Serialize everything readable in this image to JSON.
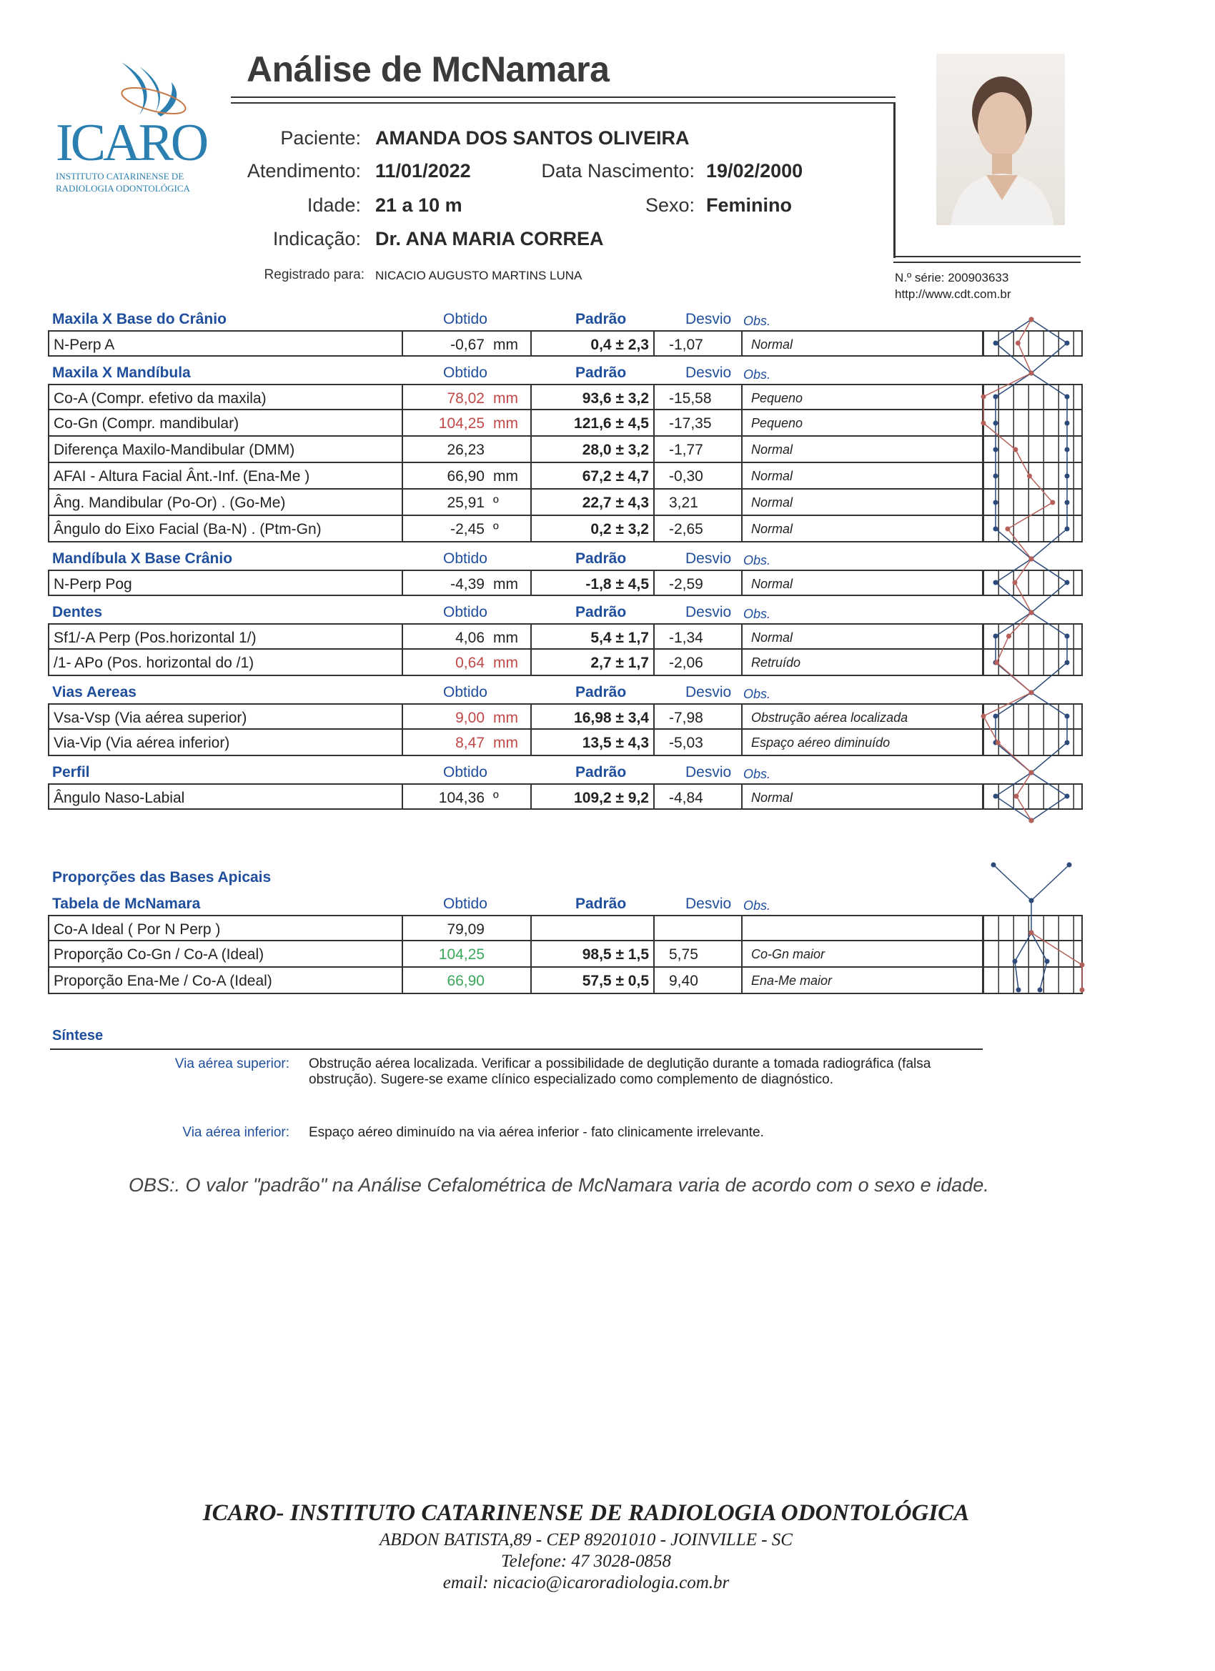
{
  "header": {
    "title": "Análise de McNamara",
    "logo": {
      "name": "ICARO",
      "line1": "INSTITUTO CATARINENSE DE",
      "line2": "RADIOLOGIA ODONTOLÓGICA"
    },
    "paciente_label": "Paciente:",
    "paciente": "AMANDA DOS SANTOS OLIVEIRA",
    "atendimento_label": "Atendimento:",
    "atendimento": "11/01/2022",
    "nascimento_label": "Data Nascimento:",
    "nascimento": "19/02/2000",
    "idade_label": "Idade:",
    "idade": "21 a 10 m",
    "sexo_label": "Sexo:",
    "sexo": "Feminino",
    "indicacao_label": "Indicação:",
    "indicacao": "Dr. ANA MARIA CORREA",
    "registrado_label": "Registrado para:",
    "registrado": "NICACIO AUGUSTO MARTINS LUNA",
    "serie": "N.º série: 200903633",
    "url": "http://www.cdt.com.br"
  },
  "columns": {
    "obtido": "Obtido",
    "padrao": "Padrão",
    "desvio": "Desvio",
    "obs": "Obs."
  },
  "colors": {
    "heading": "#1f4e9c",
    "out_of_range": "#c24848",
    "proportion": "#3aa85a",
    "graph_norm": "#2c4a7a",
    "graph_patient": "#b5605a"
  },
  "sections": [
    {
      "title": "Maxila X Base do Crânio",
      "rows": [
        {
          "name": "N-Perp A",
          "obtido": "-0,67",
          "unit": "mm",
          "padrao": "0,4 ± 2,3",
          "desvio": "-1,07",
          "obs": "Normal",
          "flag": ""
        }
      ]
    },
    {
      "title": "Maxila X Mandíbula",
      "rows": [
        {
          "name": "Co-A (Compr. efetivo da maxila)",
          "obtido": "78,02",
          "unit": "mm",
          "padrao": "93,6 ± 3,2",
          "desvio": "-15,58",
          "obs": "Pequeno",
          "flag": "red"
        },
        {
          "name": "Co-Gn (Compr. mandibular)",
          "obtido": "104,25",
          "unit": "mm",
          "padrao": "121,6 ± 4,5",
          "desvio": "-17,35",
          "obs": "Pequeno",
          "flag": "red"
        },
        {
          "name": "Diferença Maxilo-Mandibular (DMM)",
          "obtido": "26,23",
          "unit": "",
          "padrao": "28,0 ± 3,2",
          "desvio": "-1,77",
          "obs": "Normal",
          "flag": ""
        },
        {
          "name": "AFAI - Altura Facial Ânt.-Inf. (Ena-Me )",
          "obtido": "66,90",
          "unit": "mm",
          "padrao": "67,2 ± 4,7",
          "desvio": "-0,30",
          "obs": "Normal",
          "flag": ""
        },
        {
          "name": "Âng. Mandibular (Po-Or) . (Go-Me)",
          "obtido": "25,91",
          "unit": "º",
          "padrao": "22,7 ± 4,3",
          "desvio": "3,21",
          "obs": "Normal",
          "flag": ""
        },
        {
          "name": "Ângulo do Eixo Facial  (Ba-N) . (Ptm-Gn)",
          "obtido": "-2,45",
          "unit": "º",
          "padrao": "0,2 ± 3,2",
          "desvio": "-2,65",
          "obs": "Normal",
          "flag": ""
        }
      ]
    },
    {
      "title": "Mandíbula X Base Crânio",
      "rows": [
        {
          "name": "N-Perp Pog",
          "obtido": "-4,39",
          "unit": "mm",
          "padrao": "-1,8 ± 4,5",
          "desvio": "-2,59",
          "obs": "Normal",
          "flag": ""
        }
      ]
    },
    {
      "title": "Dentes",
      "rows": [
        {
          "name": "Sf1/-A Perp (Pos.horizontal 1/)",
          "obtido": "4,06",
          "unit": "mm",
          "padrao": "5,4 ± 1,7",
          "desvio": "-1,34",
          "obs": "Normal",
          "flag": ""
        },
        {
          "name": "/1- APo  (Pos. horizontal do /1)",
          "obtido": "0,64",
          "unit": "mm",
          "padrao": "2,7 ± 1,7",
          "desvio": "-2,06",
          "obs": "Retruído",
          "flag": "red"
        }
      ]
    },
    {
      "title": "Vias Aereas",
      "rows": [
        {
          "name": "Vsa-Vsp (Via aérea superior)",
          "obtido": "9,00",
          "unit": "mm",
          "padrao": "16,98 ± 3,4",
          "desvio": "-7,98",
          "obs": "Obstrução aérea localizada",
          "flag": "red"
        },
        {
          "name": "Via-Vip (Via aérea inferior)",
          "obtido": "8,47",
          "unit": "mm",
          "padrao": "13,5 ± 4,3",
          "desvio": "-5,03",
          "obs": "Espaço aéreo diminuído",
          "flag": "red"
        }
      ]
    },
    {
      "title": "Perfil",
      "rows": [
        {
          "name": "Ângulo Naso-Labial",
          "obtido": "104,36",
          "unit": "º",
          "padrao": "109,2 ± 9,2",
          "desvio": "-4,84",
          "obs": "Normal",
          "flag": ""
        }
      ]
    }
  ],
  "proporcoes": {
    "title": "Proporções das Bases Apicais",
    "section": {
      "title": "Tabela de McNamara",
      "rows": [
        {
          "name": "Co-A  Ideal  ( Por N Perp )",
          "obtido": "79,09",
          "unit": "",
          "padrao": "",
          "desvio": "",
          "obs": "",
          "flag": ""
        },
        {
          "name": "Proporção Co-Gn / Co-A (Ideal)",
          "obtido": "104,25",
          "unit": "",
          "padrao": "98,5 ± 1,5",
          "desvio": "5,75",
          "obs": "Co-Gn maior",
          "flag": "green"
        },
        {
          "name": "Proporção Ena-Me / Co-A (Ideal)",
          "obtido": "66,90",
          "unit": "",
          "padrao": "57,5 ± 0,5",
          "desvio": "9,40",
          "obs": "Ena-Me maior",
          "flag": "green"
        }
      ]
    }
  },
  "sintese": {
    "title": "Síntese",
    "superior_label": "Via aérea superior:",
    "superior_text": "Obstrução aérea localizada. Verificar a possibilidade de deglutição durante a tomada radiográfica (falsa obstrução). Sugere-se exame clínico especializado como complemento de diagnóstico.",
    "inferior_label": "Via aérea inferior:",
    "inferior_text": "Espaço aéreo diminuído na via aérea inferior - fato clinicamente irrelevante."
  },
  "obs_note": "OBS:. O valor \"padrão\" na  Análise Cefalométrica de McNamara varia de acordo com o sexo e idade.",
  "footer": {
    "name": "ICARO- INSTITUTO CATARINENSE DE RADIOLOGIA ODONTOLÓGICA",
    "address": "ABDON BATISTA,89 - CEP 89201010 - JOINVILLE - SC",
    "phone": "Telefone: 47 3028-0858",
    "email": "email: nicacio@icaroradiologia.com.br"
  }
}
